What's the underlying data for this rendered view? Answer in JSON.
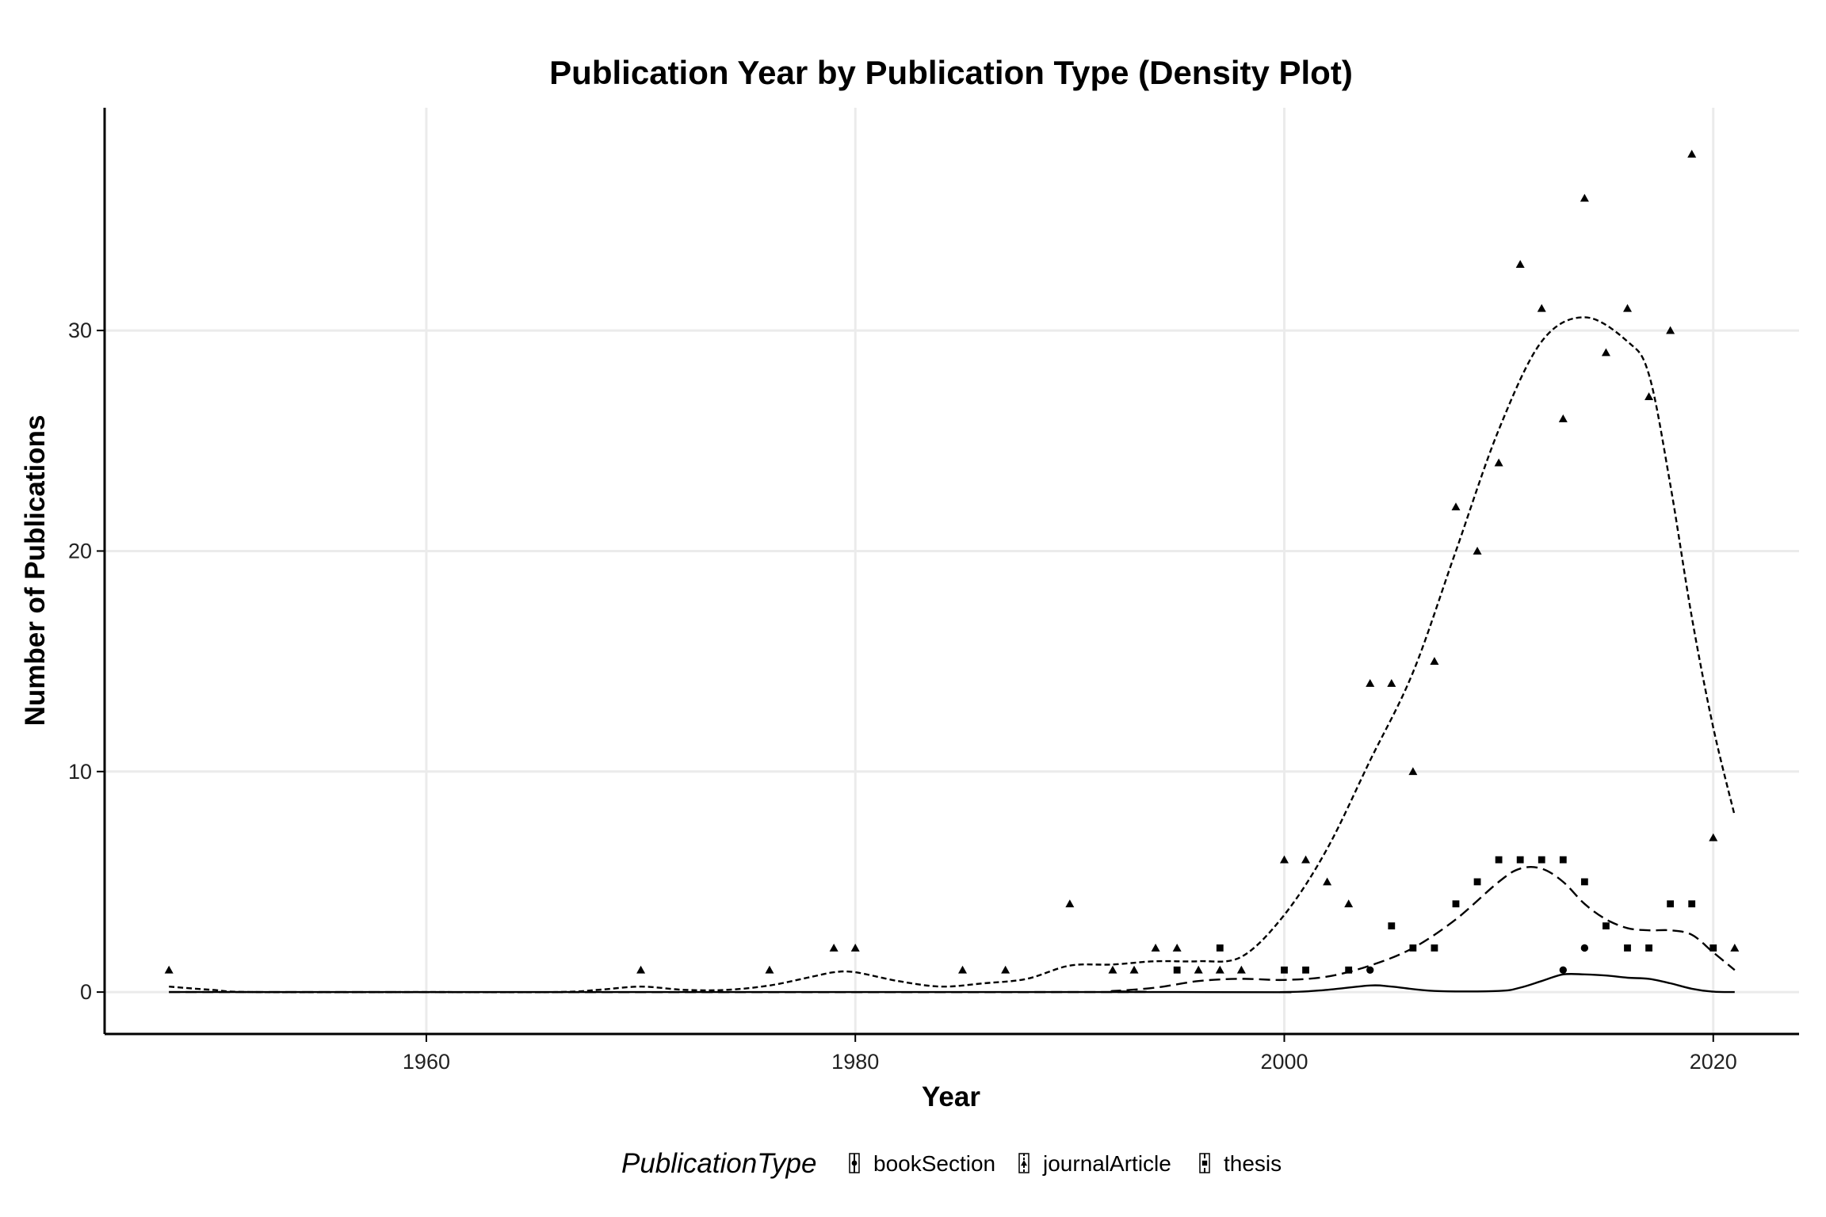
{
  "chart_data": {
    "type": "scatter",
    "title": "Publication Year by Publication Type (Density Plot)",
    "xlabel": "Year",
    "ylabel": "Number of Publications",
    "xlim": [
      1945,
      2024
    ],
    "ylim": [
      -1.9,
      40.1
    ],
    "x_ticks": [
      1960,
      1980,
      2000,
      2020
    ],
    "y_ticks": [
      0,
      10,
      20,
      30
    ],
    "grid": true,
    "legend_position": "bottom",
    "legend_title": "PublicationType",
    "series": [
      {
        "name": "bookSection",
        "marker": "circle",
        "line_style": "solid",
        "points": [
          [
            2004,
            1
          ],
          [
            2013,
            1
          ],
          [
            2014,
            2
          ]
        ],
        "density_curve": [
          [
            1948,
            0
          ],
          [
            1995,
            0
          ],
          [
            2000,
            0
          ],
          [
            2002,
            0.1
          ],
          [
            2004,
            0.3
          ],
          [
            2005,
            0.25
          ],
          [
            2007,
            0.05
          ],
          [
            2010,
            0.05
          ],
          [
            2011,
            0.2
          ],
          [
            2012,
            0.5
          ],
          [
            2013,
            0.8
          ],
          [
            2014,
            0.8
          ],
          [
            2015,
            0.75
          ],
          [
            2016,
            0.65
          ],
          [
            2017,
            0.6
          ],
          [
            2018,
            0.4
          ],
          [
            2019,
            0.15
          ],
          [
            2020,
            0.02
          ],
          [
            2021,
            0
          ]
        ]
      },
      {
        "name": "journalArticle",
        "marker": "triangle",
        "line_style": "dotted",
        "points": [
          [
            1948,
            1
          ],
          [
            1970,
            1
          ],
          [
            1976,
            1
          ],
          [
            1979,
            2
          ],
          [
            1980,
            2
          ],
          [
            1985,
            1
          ],
          [
            1987,
            1
          ],
          [
            1990,
            4
          ],
          [
            1992,
            1
          ],
          [
            1993,
            1
          ],
          [
            1994,
            2
          ],
          [
            1995,
            2
          ],
          [
            1996,
            1
          ],
          [
            1997,
            1
          ],
          [
            1998,
            1
          ],
          [
            2000,
            6
          ],
          [
            2001,
            6
          ],
          [
            2002,
            5
          ],
          [
            2003,
            4
          ],
          [
            2004,
            14
          ],
          [
            2005,
            14
          ],
          [
            2006,
            10
          ],
          [
            2007,
            15
          ],
          [
            2008,
            22
          ],
          [
            2009,
            20
          ],
          [
            2010,
            24
          ],
          [
            2011,
            33
          ],
          [
            2012,
            31
          ],
          [
            2013,
            26
          ],
          [
            2014,
            36
          ],
          [
            2015,
            29
          ],
          [
            2016,
            31
          ],
          [
            2017,
            27
          ],
          [
            2018,
            30
          ],
          [
            2019,
            38
          ],
          [
            2020,
            7
          ],
          [
            2021,
            2
          ]
        ],
        "density_curve": [
          [
            1948,
            0.25
          ],
          [
            1950,
            0.1
          ],
          [
            1952,
            0
          ],
          [
            1960,
            0
          ],
          [
            1966,
            0
          ],
          [
            1968,
            0.1
          ],
          [
            1970,
            0.25
          ],
          [
            1972,
            0.1
          ],
          [
            1974,
            0.1
          ],
          [
            1976,
            0.3
          ],
          [
            1978,
            0.7
          ],
          [
            1979,
            0.9
          ],
          [
            1980,
            0.9
          ],
          [
            1982,
            0.5
          ],
          [
            1984,
            0.25
          ],
          [
            1986,
            0.4
          ],
          [
            1988,
            0.6
          ],
          [
            1990,
            1.2
          ],
          [
            1992,
            1.25
          ],
          [
            1994,
            1.4
          ],
          [
            1996,
            1.4
          ],
          [
            1998,
            1.6
          ],
          [
            2000,
            3.5
          ],
          [
            2002,
            6.5
          ],
          [
            2004,
            10.5
          ],
          [
            2006,
            14.5
          ],
          [
            2008,
            20
          ],
          [
            2010,
            25.5
          ],
          [
            2012,
            29.5
          ],
          [
            2014,
            30.6
          ],
          [
            2016,
            29.5
          ],
          [
            2017,
            28
          ],
          [
            2018,
            23
          ],
          [
            2019,
            17
          ],
          [
            2020,
            12
          ],
          [
            2021,
            8
          ]
        ]
      },
      {
        "name": "thesis",
        "marker": "square",
        "line_style": "dashed",
        "points": [
          [
            1995,
            1
          ],
          [
            1997,
            2
          ],
          [
            2000,
            1
          ],
          [
            2001,
            1
          ],
          [
            2003,
            1
          ],
          [
            2005,
            3
          ],
          [
            2006,
            2
          ],
          [
            2007,
            2
          ],
          [
            2008,
            4
          ],
          [
            2009,
            5
          ],
          [
            2010,
            6
          ],
          [
            2011,
            6
          ],
          [
            2012,
            6
          ],
          [
            2013,
            6
          ],
          [
            2014,
            5
          ],
          [
            2015,
            3
          ],
          [
            2016,
            2
          ],
          [
            2017,
            2
          ],
          [
            2018,
            4
          ],
          [
            2019,
            4
          ],
          [
            2020,
            2
          ]
        ],
        "density_curve": [
          [
            1948,
            0
          ],
          [
            1990,
            0
          ],
          [
            1992,
            0.05
          ],
          [
            1994,
            0.2
          ],
          [
            1996,
            0.5
          ],
          [
            1998,
            0.6
          ],
          [
            2000,
            0.55
          ],
          [
            2002,
            0.7
          ],
          [
            2004,
            1.2
          ],
          [
            2006,
            2
          ],
          [
            2008,
            3.3
          ],
          [
            2010,
            5
          ],
          [
            2011,
            5.6
          ],
          [
            2012,
            5.6
          ],
          [
            2013,
            5
          ],
          [
            2014,
            4
          ],
          [
            2015,
            3.3
          ],
          [
            2016,
            2.9
          ],
          [
            2017,
            2.8
          ],
          [
            2018,
            2.8
          ],
          [
            2019,
            2.6
          ],
          [
            2020,
            1.8
          ],
          [
            2021,
            1
          ]
        ]
      }
    ]
  },
  "styles": {
    "background": "#ffffff",
    "grid_color": "#ebebeb",
    "ink_color": "#000000"
  }
}
